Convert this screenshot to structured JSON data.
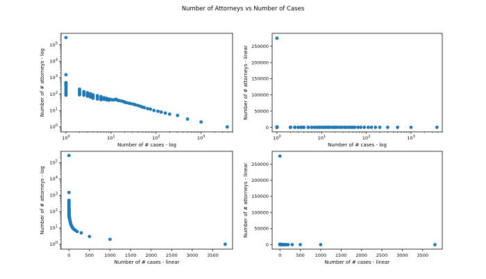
{
  "figure": {
    "title": "Number of Attorneys vs Number of Cases"
  },
  "colors": {
    "marker": "#1f77b4"
  },
  "chart_data": [
    {
      "type": "scatter",
      "xscale": "log",
      "yscale": "log",
      "xlabel": "Number of # cases - log",
      "ylabel": "Number of # attorneys - log",
      "xlim": [
        0.78,
        5000
      ],
      "ylim": [
        0.5,
        500000
      ],
      "xticks": [
        1,
        10,
        100,
        1000
      ],
      "xtick_labels": [
        "10^0",
        "10^1",
        "10^2",
        "10^3"
      ],
      "yticks": [
        1,
        10,
        100,
        1000,
        10000,
        100000
      ],
      "ytick_labels": [
        "10^0",
        "10^1",
        "10^2",
        "10^3",
        "10^4",
        "10^5"
      ],
      "points_ref": "shared"
    },
    {
      "type": "scatter",
      "xscale": "log",
      "yscale": "linear",
      "xlabel": "Number of # cases - log",
      "ylabel": "Number of # attorneys - linear",
      "xlim": [
        0.78,
        5000
      ],
      "ylim": [
        -14000,
        290000
      ],
      "xticks": [
        1,
        10,
        100,
        1000
      ],
      "xtick_labels": [
        "10^0",
        "10^1",
        "10^2",
        "10^3"
      ],
      "yticks": [
        0,
        50000,
        100000,
        150000,
        200000,
        250000
      ],
      "ytick_labels": [
        "0",
        "50000",
        "100000",
        "150000",
        "200000",
        "250000"
      ],
      "points_ref": "shared"
    },
    {
      "type": "scatter",
      "xscale": "linear",
      "yscale": "log",
      "xlabel": "Number of # cases - linear",
      "ylabel": "Number of # attorneys - log",
      "xlim": [
        -190,
        3980
      ],
      "ylim": [
        0.5,
        500000
      ],
      "xticks": [
        0,
        500,
        1000,
        1500,
        2000,
        2500,
        3000,
        3500
      ],
      "xtick_labels": [
        "0",
        "500",
        "1000",
        "1500",
        "2000",
        "2500",
        "3000",
        "3500"
      ],
      "yticks": [
        1,
        10,
        100,
        1000,
        10000,
        100000
      ],
      "ytick_labels": [
        "10^0",
        "10^1",
        "10^2",
        "10^3",
        "10^4",
        "10^5"
      ],
      "points_ref": "shared"
    },
    {
      "type": "scatter",
      "xscale": "linear",
      "yscale": "linear",
      "xlabel": "Number of # cases - linear",
      "ylabel": "Number of # attorneys - linear",
      "xlim": [
        -190,
        3980
      ],
      "ylim": [
        -14000,
        290000
      ],
      "xticks": [
        0,
        500,
        1000,
        1500,
        2000,
        2500,
        3000,
        3500
      ],
      "xtick_labels": [
        "0",
        "500",
        "1000",
        "1500",
        "2000",
        "2500",
        "3000",
        "3500"
      ],
      "yticks": [
        0,
        50000,
        100000,
        150000,
        200000,
        250000
      ],
      "ytick_labels": [
        "0",
        "50000",
        "100000",
        "150000",
        "200000",
        "250000"
      ],
      "points_ref": "shared"
    }
  ],
  "points": [
    [
      1,
      275000
    ],
    [
      1,
      1500
    ],
    [
      1,
      500
    ],
    [
      1,
      450
    ],
    [
      1,
      400
    ],
    [
      1,
      350
    ],
    [
      1,
      300
    ],
    [
      1,
      250
    ],
    [
      1,
      200
    ],
    [
      1,
      160
    ],
    [
      1,
      130
    ],
    [
      1,
      110
    ],
    [
      1,
      95
    ],
    [
      1,
      85
    ],
    [
      2,
      200
    ],
    [
      2,
      160
    ],
    [
      2,
      130
    ],
    [
      2,
      110
    ],
    [
      2,
      90
    ],
    [
      2.5,
      140
    ],
    [
      2.5,
      110
    ],
    [
      2.5,
      85
    ],
    [
      3,
      120
    ],
    [
      3,
      95
    ],
    [
      3,
      75
    ],
    [
      3.5,
      105
    ],
    [
      3.5,
      80
    ],
    [
      3.5,
      65
    ],
    [
      4,
      90
    ],
    [
      4,
      70
    ],
    [
      4,
      55
    ],
    [
      5,
      80
    ],
    [
      5,
      65
    ],
    [
      5,
      50
    ],
    [
      6,
      70
    ],
    [
      6,
      55
    ],
    [
      6,
      45
    ],
    [
      7,
      60
    ],
    [
      7,
      48
    ],
    [
      8,
      55
    ],
    [
      8,
      44
    ],
    [
      9,
      50
    ],
    [
      9,
      42
    ],
    [
      10,
      46
    ],
    [
      11,
      44
    ],
    [
      12,
      45
    ],
    [
      13,
      48
    ],
    [
      14,
      42
    ],
    [
      15,
      40
    ],
    [
      17,
      38
    ],
    [
      19,
      35
    ],
    [
      20,
      32
    ],
    [
      22,
      30
    ],
    [
      25,
      28
    ],
    [
      28,
      26
    ],
    [
      32,
      24
    ],
    [
      35,
      22
    ],
    [
      40,
      20
    ],
    [
      45,
      18
    ],
    [
      50,
      16
    ],
    [
      55,
      15
    ],
    [
      65,
      13
    ],
    [
      75,
      12
    ],
    [
      90,
      10
    ],
    [
      110,
      9
    ],
    [
      130,
      8
    ],
    [
      160,
      7
    ],
    [
      200,
      6
    ],
    [
      300,
      5
    ],
    [
      500,
      3
    ],
    [
      1000,
      2
    ],
    [
      3800,
      1
    ]
  ]
}
